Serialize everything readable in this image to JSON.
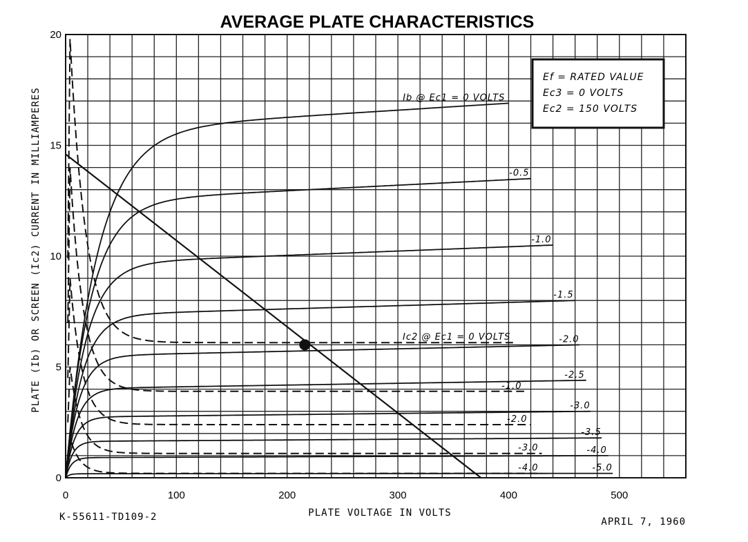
{
  "chart_data": {
    "type": "line",
    "title": "AVERAGE PLATE CHARACTERISTICS",
    "xlabel": "PLATE VOLTAGE IN VOLTS",
    "ylabel": "PLATE (Ib) OR SCREEN (Ic2) CURRENT IN MILLIAMPERES",
    "xlim": [
      0,
      560
    ],
    "ylim": [
      0,
      20
    ],
    "x_ticks": [
      "0",
      "100",
      "200",
      "300",
      "400",
      "500"
    ],
    "y_ticks": [
      "0",
      "5",
      "10",
      "15",
      "20"
    ],
    "grid": true,
    "conditions": [
      "Ef = RATED VALUE",
      "Ec3 = 0 VOLTS",
      "Ec2 = 150 VOLTS"
    ],
    "footer_left": "K-55611-TD109-2",
    "footer_right": "APRIL 7, 1960",
    "plate_curves": [
      {
        "label": "Ib @ Ec1 = 0 VOLTS",
        "sat": 16.9,
        "knee": 28,
        "x_end": 400
      },
      {
        "label": "-0.5",
        "sat": 13.5,
        "knee": 22,
        "x_end": 420
      },
      {
        "label": "-1.0",
        "sat": 10.5,
        "knee": 18,
        "x_end": 440
      },
      {
        "label": "-1.5",
        "sat": 8.0,
        "knee": 15,
        "x_end": 460
      },
      {
        "label": "-2.0",
        "sat": 6.0,
        "knee": 12,
        "x_end": 465
      },
      {
        "label": "-2.5",
        "sat": 4.4,
        "knee": 10,
        "x_end": 470
      },
      {
        "label": "-3.0",
        "sat": 3.0,
        "knee": 8,
        "x_end": 475
      },
      {
        "label": "-3.5",
        "sat": 1.8,
        "knee": 6,
        "x_end": 485
      },
      {
        "label": "-4.0",
        "sat": 1.0,
        "knee": 5,
        "x_end": 490
      },
      {
        "label": "-5.0",
        "sat": 0.2,
        "knee": 3,
        "x_end": 495
      }
    ],
    "screen_curves": [
      {
        "label": "Ic2 @ Ec1 = 0 VOLTS",
        "sat": 6.1,
        "peak": 19.8,
        "decay": 14,
        "x_end": 405
      },
      {
        "label": "-1.0",
        "sat": 3.9,
        "peak": 14.0,
        "decay": 12,
        "x_end": 415
      },
      {
        "label": "-2.0",
        "sat": 2.4,
        "peak": 9.0,
        "decay": 11,
        "x_end": 420
      },
      {
        "label": "-3.0",
        "sat": 1.1,
        "peak": 5.0,
        "decay": 10,
        "x_end": 430
      },
      {
        "label": "-4.0",
        "sat": 0.2,
        "peak": 1.8,
        "decay": 9,
        "x_end": 430
      }
    ],
    "load_line": {
      "x": [
        0,
        375
      ],
      "y": [
        14.6,
        0
      ]
    },
    "operating_point": {
      "x": 216,
      "y": 6.0
    }
  }
}
